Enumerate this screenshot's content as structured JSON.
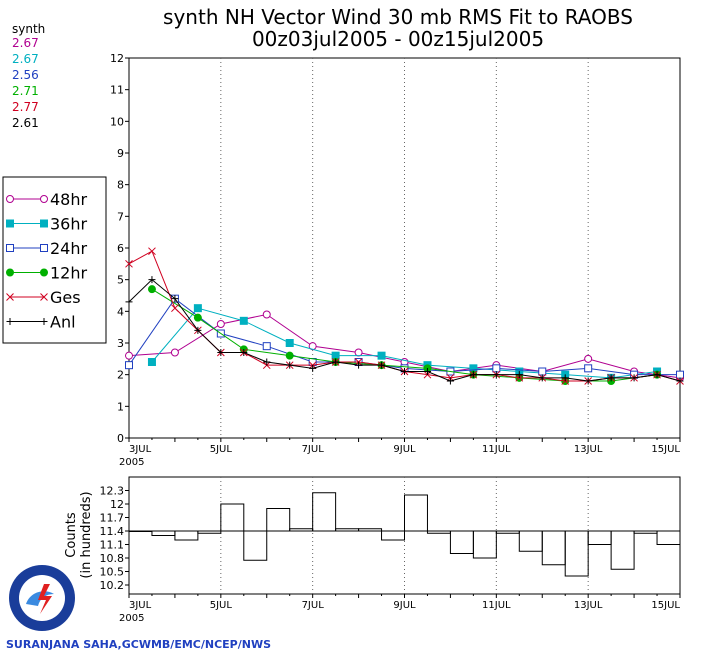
{
  "title_line1": "synth NH Vector Wind 30 mb RMS Fit to RAOBS",
  "title_line2": "00z03jul2005 - 00z15jul2005",
  "stats": {
    "header": "synth",
    "values": [
      {
        "text": "2.67",
        "color": "#b00090"
      },
      {
        "text": "2.67",
        "color": "#00b0c0"
      },
      {
        "text": "2.56",
        "color": "#2040c0"
      },
      {
        "text": "2.71",
        "color": "#00b000"
      },
      {
        "text": "2.77",
        "color": "#d00020"
      },
      {
        "text": "2.61",
        "color": "#000000"
      }
    ]
  },
  "legend": [
    {
      "label": "48hr",
      "color": "#b00090",
      "marker": "open-circle"
    },
    {
      "label": "36hr",
      "color": "#00b0c0",
      "marker": "filled-square"
    },
    {
      "label": "24hr",
      "color": "#2040c0",
      "marker": "open-square"
    },
    {
      "label": "12hr",
      "color": "#00b000",
      "marker": "filled-circle"
    },
    {
      "label": "Ges",
      "color": "#d00020",
      "marker": "x"
    },
    {
      "label": "Anl",
      "color": "#000000",
      "marker": "plus"
    }
  ],
  "lower_ylabel_line1": "Counts",
  "lower_ylabel_line2": "(in hundreds)",
  "footer": "SURANJANA SAHA,GCWMB/EMC/NCEP/NWS",
  "logo_text": "NATIONAL WEATHER SERVICE",
  "chart_data": [
    {
      "type": "line",
      "title": "synth NH Vector Wind 30 mb RMS Fit to RAOBS",
      "subtitle": "00z03jul2005 - 00z15jul2005",
      "xlim": [
        0,
        24
      ],
      "ylim": [
        0,
        12
      ],
      "y_ticks": [
        0,
        1,
        2,
        3,
        4,
        5,
        6,
        7,
        8,
        9,
        10,
        11,
        12
      ],
      "x_ticks": [
        {
          "x": 0,
          "label": "3JUL",
          "sub": "2005"
        },
        {
          "x": 4,
          "label": "5JUL"
        },
        {
          "x": 8,
          "label": "7JUL"
        },
        {
          "x": 12,
          "label": "9JUL"
        },
        {
          "x": 16,
          "label": "11JUL"
        },
        {
          "x": 20,
          "label": "13JUL"
        },
        {
          "x": 24,
          "label": "15JUL"
        }
      ],
      "grid": "dotted-vertical",
      "legend_position": "left",
      "series": [
        {
          "name": "48hr",
          "color": "#b00090",
          "marker": "open-circle",
          "values": [
            2.6,
            null,
            2.7,
            3.6,
            3.9,
            2.9,
            2.7,
            2.4,
            2.1,
            2.3,
            2.1,
            2.5,
            2.1,
            1.9
          ],
          "x": [
            0,
            1,
            2,
            4,
            6,
            8,
            10,
            12,
            14,
            16,
            18,
            20,
            22,
            24
          ]
        },
        {
          "name": "36hr",
          "color": "#00b0c0",
          "marker": "filled-square",
          "x": [
            1,
            3,
            5,
            7,
            9,
            11,
            13,
            15,
            17,
            19,
            21,
            23
          ],
          "values": [
            2.4,
            4.1,
            3.7,
            3.0,
            2.6,
            2.6,
            2.3,
            2.2,
            2.1,
            2.0,
            1.9,
            2.1
          ]
        },
        {
          "name": "24hr",
          "color": "#2040c0",
          "marker": "open-square",
          "x": [
            0,
            2,
            4,
            6,
            8,
            10,
            12,
            14,
            16,
            18,
            20,
            22,
            24
          ],
          "values": [
            2.3,
            4.4,
            3.3,
            2.9,
            2.4,
            2.4,
            2.2,
            2.1,
            2.2,
            2.1,
            2.2,
            2.0,
            2.0
          ]
        },
        {
          "name": "12hr",
          "color": "#00b000",
          "marker": "filled-circle",
          "x": [
            1,
            3,
            5,
            7,
            9,
            11,
            13,
            15,
            17,
            19,
            21,
            23
          ],
          "values": [
            4.7,
            3.8,
            2.8,
            2.6,
            2.4,
            2.3,
            2.2,
            2.0,
            1.9,
            1.8,
            1.8,
            2.0
          ]
        },
        {
          "name": "Ges",
          "color": "#d00020",
          "marker": "x",
          "x": [
            0,
            1,
            2,
            3,
            4,
            5,
            6,
            7,
            8,
            9,
            10,
            11,
            12,
            13,
            14,
            15,
            16,
            17,
            18,
            19,
            20,
            21,
            22,
            23,
            24
          ],
          "values": [
            5.5,
            5.9,
            4.1,
            3.4,
            2.7,
            2.7,
            2.3,
            2.3,
            2.3,
            2.4,
            2.4,
            2.3,
            2.1,
            2.0,
            1.9,
            2.0,
            2.0,
            1.9,
            1.9,
            1.8,
            1.8,
            1.9,
            1.9,
            2.0,
            1.8
          ]
        },
        {
          "name": "Anl",
          "color": "#000000",
          "marker": "plus",
          "x": [
            0,
            1,
            2,
            3,
            4,
            5,
            6,
            7,
            8,
            9,
            10,
            11,
            12,
            13,
            14,
            15,
            16,
            17,
            18,
            19,
            20,
            21,
            22,
            23,
            24
          ],
          "values": [
            4.3,
            5.0,
            4.4,
            3.4,
            2.7,
            2.7,
            2.4,
            2.3,
            2.2,
            2.4,
            2.3,
            2.3,
            2.1,
            2.1,
            1.8,
            2.0,
            2.0,
            2.0,
            1.9,
            1.9,
            1.8,
            1.9,
            1.9,
            2.0,
            1.8
          ]
        }
      ]
    },
    {
      "type": "bar",
      "ylabel": "Counts (in hundreds)",
      "ylim": [
        10.0,
        12.6
      ],
      "y_ticks": [
        10.2,
        10.5,
        10.8,
        11.1,
        11.4,
        11.7,
        12,
        12.3
      ],
      "baseline": 11.4,
      "xlim": [
        0,
        24
      ],
      "x": [
        0,
        1,
        2,
        3,
        4,
        5,
        6,
        7,
        8,
        9,
        10,
        11,
        12,
        13,
        14,
        15,
        16,
        17,
        18,
        19,
        20,
        21,
        22,
        23
      ],
      "values": [
        11.4,
        11.3,
        11.2,
        11.35,
        12.0,
        10.75,
        11.9,
        11.45,
        12.25,
        11.45,
        11.45,
        11.2,
        12.2,
        11.35,
        10.9,
        10.8,
        11.35,
        10.95,
        10.65,
        10.4,
        11.1,
        10.55,
        11.35,
        11.1
      ]
    }
  ]
}
